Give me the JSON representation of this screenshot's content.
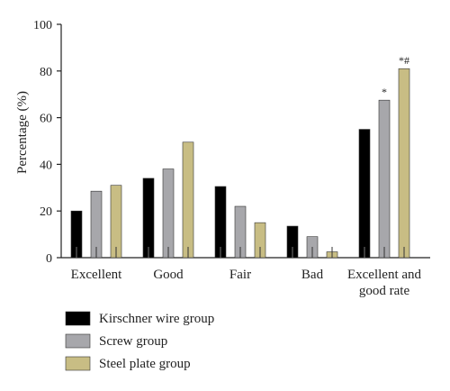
{
  "chart_data": {
    "type": "bar",
    "ylabel": "Percentage (%)",
    "ylim": [
      0,
      100
    ],
    "yticks": [
      0,
      20,
      40,
      60,
      80,
      100
    ],
    "grid": false,
    "legend_position": "bottom-left",
    "categories": [
      [
        "Excellent"
      ],
      [
        "Good"
      ],
      [
        "Fair"
      ],
      [
        "Bad"
      ],
      [
        "Excellent and",
        "good rate"
      ]
    ],
    "series": [
      {
        "name": "Kirschner wire group",
        "color": "#000000",
        "values": [
          20,
          34,
          30.5,
          13.5,
          55
        ]
      },
      {
        "name": "Screw group",
        "color": "#a7a7ab",
        "values": [
          28.5,
          38,
          22,
          9,
          67.5
        ]
      },
      {
        "name": "Steel plate group",
        "color": "#c8bd84",
        "values": [
          31,
          49.5,
          15,
          2.5,
          81
        ]
      }
    ],
    "annotations": [
      {
        "category_index": 4,
        "series_index": 1,
        "text": "*"
      },
      {
        "category_index": 4,
        "series_index": 2,
        "text": "*#"
      }
    ]
  }
}
